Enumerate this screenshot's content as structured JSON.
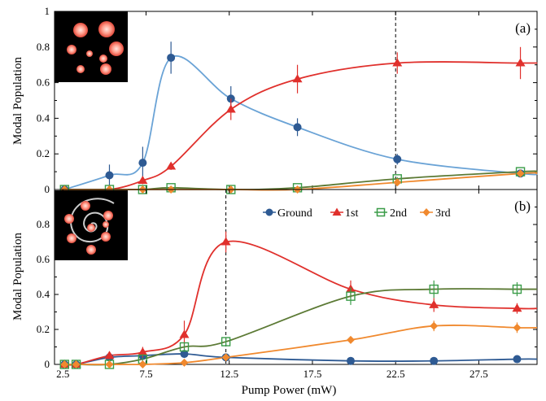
{
  "chart_data": [
    {
      "type": "line",
      "panel_label": "(a)",
      "ylabel": "Modal  Population",
      "xlim": [
        2,
        31
      ],
      "ylim": [
        0,
        1
      ],
      "y_ticks": [
        "0",
        "0.2",
        "0.4",
        "0.6",
        "0.8",
        "1"
      ],
      "x_tick_values": [
        2.5,
        7.5,
        12.5,
        17.5,
        22.5,
        27.5
      ],
      "vline_x": 22.5,
      "series": [
        {
          "key": "ground",
          "color": "#2e5a93",
          "curve": "#6aa3d6",
          "marker": "circle",
          "x": [
            2.6,
            5.3,
            7.3,
            9.0,
            12.6,
            16.6,
            22.6,
            30.0
          ],
          "y": [
            0.0,
            0.08,
            0.15,
            0.74,
            0.51,
            0.35,
            0.17,
            0.09
          ],
          "err": [
            0.0,
            0.06,
            0.09,
            0.09,
            0.07,
            0.05,
            0.03,
            0.02
          ]
        },
        {
          "key": "first",
          "color": "#e0302c",
          "curve": "#e0302c",
          "marker": "triangle",
          "x": [
            2.6,
            5.3,
            7.3,
            9.0,
            12.6,
            16.6,
            22.6,
            30.0
          ],
          "y": [
            0.0,
            0.0,
            0.05,
            0.13,
            0.45,
            0.62,
            0.71,
            0.71
          ],
          "err": [
            0.0,
            0.0,
            0.02,
            0.02,
            0.06,
            0.08,
            0.06,
            0.09
          ]
        },
        {
          "key": "second",
          "color": "#3a9c48",
          "curve": "#5c7a35",
          "marker": "square",
          "x": [
            2.6,
            5.3,
            7.3,
            9.0,
            12.6,
            16.6,
            22.6,
            30.0
          ],
          "y": [
            0.0,
            0.0,
            0.0,
            0.01,
            0.0,
            0.01,
            0.06,
            0.1
          ],
          "err": [
            0.0,
            0.0,
            0.0,
            0.0,
            0.0,
            0.0,
            0.01,
            0.01
          ]
        },
        {
          "key": "third",
          "color": "#f0892e",
          "curve": "#f0892e",
          "marker": "diamond",
          "x": [
            2.6,
            5.3,
            7.3,
            9.0,
            12.6,
            16.6,
            22.6,
            30.0
          ],
          "y": [
            0.0,
            0.0,
            0.0,
            0.0,
            0.0,
            0.0,
            0.04,
            0.09
          ],
          "err": [
            0.0,
            0.0,
            0.0,
            0.0,
            0.0,
            0.0,
            0.01,
            0.02
          ]
        }
      ]
    },
    {
      "type": "line",
      "panel_label": "(b)",
      "ylabel": "Modal  Population",
      "xlabel": "Pump Power (mW)",
      "xlim": [
        2,
        31
      ],
      "ylim": [
        0,
        1
      ],
      "y_ticks": [
        "0",
        "0.2",
        "0.4",
        "0.6",
        "0.8"
      ],
      "x_tick_values": [
        2.5,
        7.5,
        12.5,
        17.5,
        22.5,
        27.5
      ],
      "x_tick_labels": [
        "2.5",
        "7.5",
        "12.5",
        "17.5",
        "22.5",
        "27.5"
      ],
      "vline_x": 12.3,
      "series": [
        {
          "key": "ground",
          "name": "Ground",
          "color": "#2e5a93",
          "curve": "#2e5a93",
          "marker": "circle",
          "x": [
            2.6,
            3.3,
            5.3,
            7.3,
            9.8,
            12.3,
            19.8,
            24.8,
            29.8
          ],
          "y": [
            0.0,
            0.0,
            0.04,
            0.05,
            0.06,
            0.04,
            0.02,
            0.02,
            0.03
          ],
          "err": [
            0.0,
            0.0,
            0.01,
            0.01,
            0.01,
            0.01,
            0.0,
            0.0,
            0.0
          ]
        },
        {
          "key": "first",
          "name": "1st",
          "color": "#e0302c",
          "curve": "#e0302c",
          "marker": "triangle",
          "x": [
            2.6,
            3.3,
            5.3,
            7.3,
            9.8,
            12.3,
            19.8,
            24.8,
            29.8
          ],
          "y": [
            0.0,
            0.0,
            0.05,
            0.07,
            0.17,
            0.7,
            0.43,
            0.34,
            0.32
          ],
          "err": [
            0.0,
            0.0,
            0.02,
            0.03,
            0.08,
            0.06,
            0.05,
            0.04,
            0.03
          ]
        },
        {
          "key": "second",
          "name": "2nd",
          "color": "#3a9c48",
          "curve": "#5c7a35",
          "marker": "square",
          "x": [
            2.6,
            3.3,
            5.3,
            7.3,
            9.8,
            12.3,
            19.8,
            24.8,
            29.8
          ],
          "y": [
            0.0,
            0.0,
            0.0,
            0.03,
            0.1,
            0.13,
            0.39,
            0.43,
            0.43
          ],
          "err": [
            0.0,
            0.0,
            0.0,
            0.01,
            0.02,
            0.02,
            0.05,
            0.05,
            0.04
          ]
        },
        {
          "key": "third",
          "name": "3rd",
          "color": "#f0892e",
          "curve": "#f0892e",
          "marker": "diamond",
          "x": [
            2.6,
            3.3,
            5.3,
            7.3,
            9.8,
            12.3,
            19.8,
            24.8,
            29.8
          ],
          "y": [
            0.0,
            0.0,
            0.0,
            0.0,
            0.01,
            0.04,
            0.14,
            0.22,
            0.21
          ],
          "err": [
            0.0,
            0.0,
            0.0,
            0.0,
            0.01,
            0.01,
            0.02,
            0.03,
            0.03
          ]
        }
      ]
    }
  ]
}
